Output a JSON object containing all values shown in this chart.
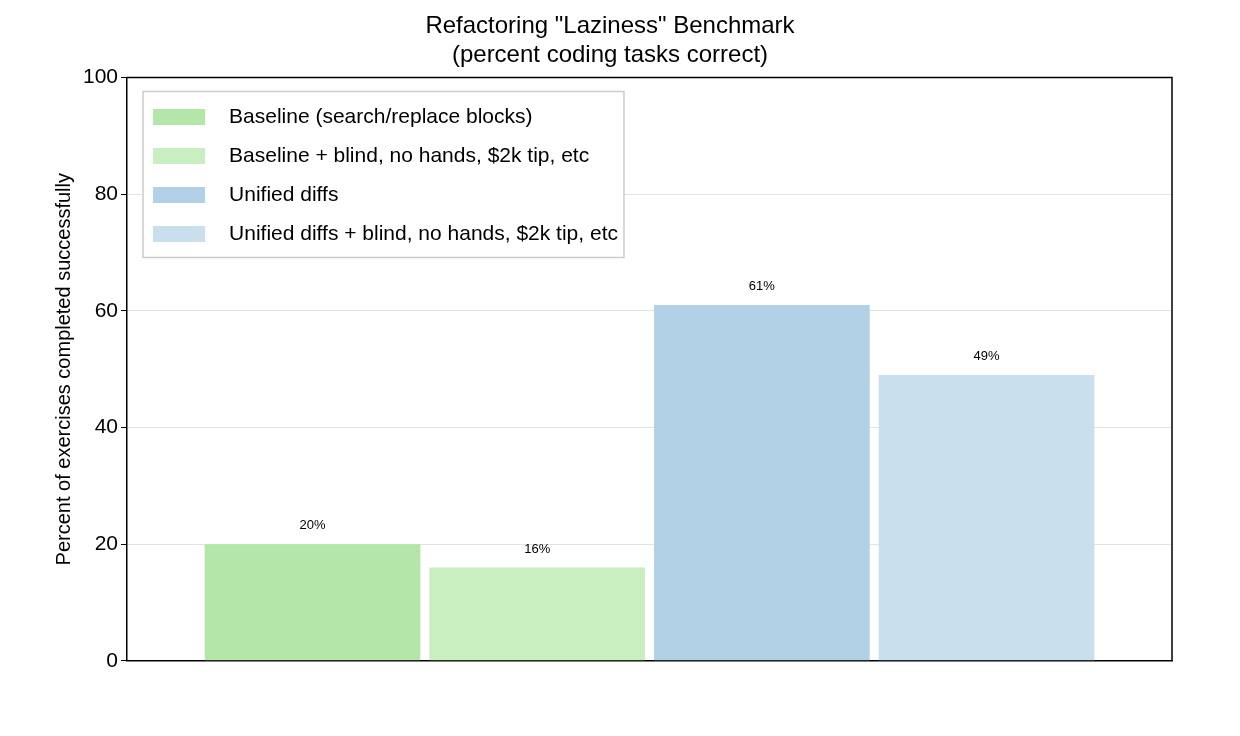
{
  "chart_data": {
    "type": "bar",
    "title": "Refactoring \"Laziness\" Benchmark",
    "subtitle": "(percent coding tasks correct)",
    "ylabel": "Percent of exercises completed successfully",
    "categories": [
      null
    ],
    "series": [
      {
        "name": "Baseline (search/replace blocks)",
        "color": "#b3e6a8",
        "values": [
          20
        ],
        "value_labels": [
          "20%"
        ]
      },
      {
        "name": "Baseline + blind, no hands, $2k tip, etc",
        "color": "#c9eebf",
        "values": [
          16
        ],
        "value_labels": [
          "16%"
        ]
      },
      {
        "name": "Unified diffs",
        "color": "#b3d1e6",
        "values": [
          61
        ],
        "value_labels": [
          "61%"
        ]
      },
      {
        "name": "Unified diffs + blind, no hands, $2k tip, etc",
        "color": "#c8dfee",
        "values": [
          49
        ],
        "value_labels": [
          "49%"
        ]
      }
    ],
    "ylim": [
      0,
      100
    ],
    "yticks": [
      0,
      20,
      40,
      60,
      80,
      100
    ],
    "grid": "y",
    "legend": "top left"
  }
}
